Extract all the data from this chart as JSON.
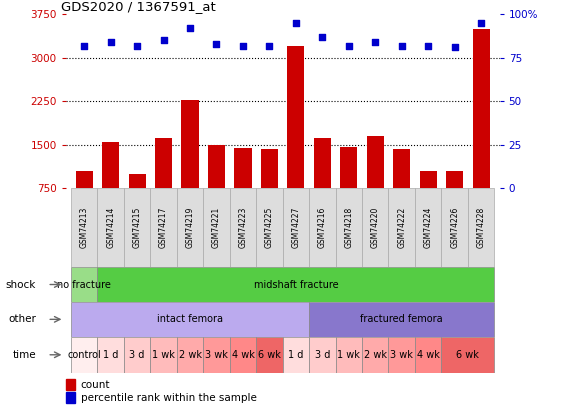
{
  "title": "GDS2020 / 1367591_at",
  "samples": [
    "GSM74213",
    "GSM74214",
    "GSM74215",
    "GSM74217",
    "GSM74219",
    "GSM74221",
    "GSM74223",
    "GSM74225",
    "GSM74227",
    "GSM74216",
    "GSM74218",
    "GSM74220",
    "GSM74222",
    "GSM74224",
    "GSM74226",
    "GSM74228"
  ],
  "counts": [
    1050,
    1540,
    1000,
    1620,
    2280,
    1500,
    1440,
    1420,
    3200,
    1610,
    1460,
    1650,
    1420,
    1040,
    1040,
    3500
  ],
  "percentiles": [
    82,
    84,
    82,
    85,
    92,
    83,
    82,
    82,
    95,
    87,
    82,
    84,
    82,
    82,
    81,
    95
  ],
  "ylim_left": [
    750,
    3750
  ],
  "ylim_right": [
    0,
    100
  ],
  "yticks_left": [
    750,
    1500,
    2250,
    3000,
    3750
  ],
  "yticks_right": [
    0,
    25,
    50,
    75,
    100
  ],
  "bar_color": "#cc0000",
  "dot_color": "#0000cc",
  "shock_groups": [
    {
      "label": "no fracture",
      "start": 0,
      "end": 1,
      "color": "#99dd88"
    },
    {
      "label": "midshaft fracture",
      "start": 1,
      "end": 16,
      "color": "#55cc44"
    }
  ],
  "other_groups": [
    {
      "label": "intact femora",
      "start": 0,
      "end": 9,
      "color": "#bbaaee"
    },
    {
      "label": "fractured femora",
      "start": 9,
      "end": 16,
      "color": "#8877cc"
    }
  ],
  "time_groups": [
    {
      "label": "control",
      "start": 0,
      "end": 1,
      "color": "#ffeeee"
    },
    {
      "label": "1 d",
      "start": 1,
      "end": 2,
      "color": "#ffdddd"
    },
    {
      "label": "3 d",
      "start": 2,
      "end": 3,
      "color": "#ffcccc"
    },
    {
      "label": "1 wk",
      "start": 3,
      "end": 4,
      "color": "#ffbbbb"
    },
    {
      "label": "2 wk",
      "start": 4,
      "end": 5,
      "color": "#ffaaaa"
    },
    {
      "label": "3 wk",
      "start": 5,
      "end": 6,
      "color": "#ff9999"
    },
    {
      "label": "4 wk",
      "start": 6,
      "end": 7,
      "color": "#ff8888"
    },
    {
      "label": "6 wk",
      "start": 7,
      "end": 8,
      "color": "#ee6666"
    },
    {
      "label": "1 d",
      "start": 8,
      "end": 9,
      "color": "#ffdddd"
    },
    {
      "label": "3 d",
      "start": 9,
      "end": 10,
      "color": "#ffcccc"
    },
    {
      "label": "1 wk",
      "start": 10,
      "end": 11,
      "color": "#ffbbbb"
    },
    {
      "label": "2 wk",
      "start": 11,
      "end": 12,
      "color": "#ffaaaa"
    },
    {
      "label": "3 wk",
      "start": 12,
      "end": 13,
      "color": "#ff9999"
    },
    {
      "label": "4 wk",
      "start": 13,
      "end": 14,
      "color": "#ff8888"
    },
    {
      "label": "6 wk",
      "start": 14,
      "end": 16,
      "color": "#ee6666"
    }
  ],
  "row_labels": [
    "shock",
    "other",
    "time"
  ],
  "background_color": "#ffffff",
  "label_bg": "#dddddd",
  "label_edge": "#aaaaaa"
}
